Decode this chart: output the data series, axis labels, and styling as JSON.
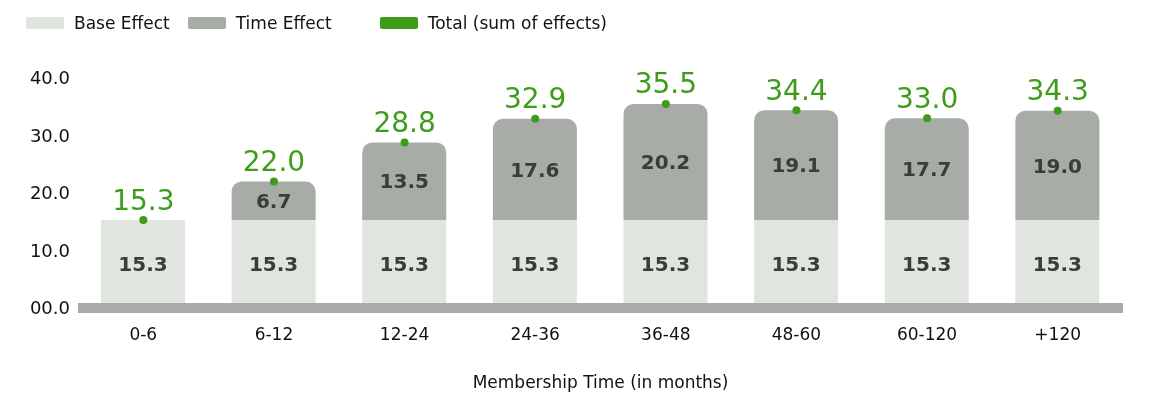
{
  "chart_data": {
    "type": "bar",
    "stacked": true,
    "xlabel": "Membership Time (in months)",
    "categories": [
      "0-6",
      "6-12",
      "12-24",
      "24-36",
      "36-48",
      "48-60",
      "60-120",
      "+120"
    ],
    "series": [
      {
        "name": "Base Effect",
        "color": "#e1e5e0",
        "values": [
          15.3,
          15.3,
          15.3,
          15.3,
          15.3,
          15.3,
          15.3,
          15.3
        ],
        "value_labels": [
          "15.3",
          "15.3",
          "15.3",
          "15.3",
          "15.3",
          "15.3",
          "15.3",
          "15.3"
        ]
      },
      {
        "name": "Time Effect",
        "color": "#a7aca6",
        "values": [
          null,
          6.7,
          13.5,
          17.6,
          20.2,
          19.1,
          17.7,
          19.0
        ],
        "value_labels": [
          null,
          "6.7",
          "13.5",
          "17.6",
          "20.2",
          "19.1",
          "17.7",
          "19.0"
        ]
      },
      {
        "name": "Total (sum of effects)",
        "type": "scatter",
        "marker": "circle",
        "color": "#3f9c1a",
        "values": [
          15.3,
          22.0,
          28.8,
          32.9,
          35.5,
          34.4,
          33.0,
          34.3
        ],
        "value_labels": [
          "15.3",
          "22.0",
          "28.8",
          "32.9",
          "35.5",
          "34.4",
          "33.0",
          "34.3"
        ]
      }
    ],
    "ylim": [
      0,
      40
    ],
    "yticks": [
      {
        "value": 0,
        "label": "00.0"
      },
      {
        "value": 10,
        "label": "10.0"
      },
      {
        "value": 20,
        "label": "20.0"
      },
      {
        "value": 30,
        "label": "30.0"
      },
      {
        "value": 40,
        "label": "40.0"
      }
    ],
    "grid": false,
    "legend": "top left"
  }
}
